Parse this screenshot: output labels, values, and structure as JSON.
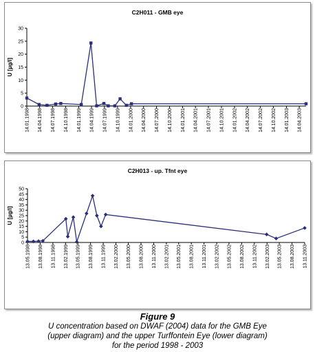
{
  "chart_data": [
    {
      "type": "line",
      "title": "C2H011 - GMB eye",
      "ylabel": "U [µg/l]",
      "xlabel": "",
      "ylim": [
        0,
        30
      ],
      "yticks": [
        0,
        5,
        10,
        15,
        20,
        25,
        30
      ],
      "xlim": [
        "1998-01-14",
        "2003-06-01"
      ],
      "xtick_labels": [
        "14.01.1998",
        "14.04.1998",
        "14.07.1998",
        "14.10.1998",
        "14.01.1999",
        "14.04.1999",
        "14.07.1999",
        "14.10.1999",
        "14.01.2000",
        "14.04.2000",
        "14.07.2000",
        "14.10.2000",
        "14.01.2001",
        "14.04.2001",
        "14.07.2001",
        "14.10.2001",
        "14.01.2002",
        "14.04.2002",
        "14.07.2002",
        "14.10.2002",
        "14.01.2003",
        "14.04.2003"
      ],
      "marker": "square",
      "color": "#2b2e7a",
      "grid": false,
      "legend": "none",
      "series": [
        {
          "x": [
            "1998-01-14",
            "1998-04-10",
            "1998-06-05",
            "1998-08-05",
            "1998-09-10",
            "1999-02-01",
            "1999-04-10",
            "1999-05-20",
            "1999-07-10",
            "1999-08-10",
            "1999-09-25",
            "1999-11-01",
            "1999-12-15",
            "2000-01-20",
            "2003-06-01"
          ],
          "y": [
            3.1,
            0.6,
            0.3,
            0.8,
            1.0,
            0.6,
            24.3,
            0.1,
            1.0,
            0.1,
            0.1,
            2.8,
            0.3,
            0.9,
            0.9
          ]
        }
      ]
    },
    {
      "type": "line",
      "title": "C2H013 - up. Tfnt eye",
      "ylabel": "U [µg/l]",
      "xlabel": "",
      "ylim": [
        0,
        50
      ],
      "yticks": [
        0,
        5,
        10,
        15,
        20,
        25,
        30,
        35,
        40,
        45,
        50
      ],
      "xlim": [
        "1998-05-13",
        "2003-11-13"
      ],
      "xtick_labels": [
        "13.05.1998",
        "13.08.1998",
        "13.11.1998",
        "13.02.1999",
        "13.05.1999",
        "13.08.1999",
        "13.11.1999",
        "13.02.2000",
        "13.05.2000",
        "13.08.2000",
        "13.11.2000",
        "13.02.2001",
        "13.05.2001",
        "13.08.2001",
        "13.11.2001",
        "13.02.2002",
        "13.05.2002",
        "13.08.2002",
        "13.11.2002",
        "13.02.2003",
        "13.05.2003",
        "13.08.2003",
        "13.11.2003"
      ],
      "marker": "diamond",
      "color": "#2b2e7a",
      "grid": false,
      "legend": "none",
      "series": [
        {
          "x": [
            "1998-05-13",
            "1998-06-25",
            "1998-08-01",
            "1998-09-01",
            "1999-02-15",
            "1999-03-01",
            "1999-04-10",
            "1999-05-05",
            "1999-07-15",
            "1999-08-28",
            "1999-09-28",
            "1999-10-28",
            "1999-12-01",
            "2003-02-10",
            "2003-04-20",
            "2003-11-13"
          ],
          "y": [
            1.0,
            1.0,
            1.2,
            1.5,
            22.0,
            5.5,
            23.5,
            0.5,
            27.0,
            43.5,
            25.0,
            15.0,
            26.0,
            7.5,
            3.7,
            13.5
          ]
        }
      ]
    }
  ],
  "figure": {
    "label": "Figure 9",
    "caption_lines": [
      "U concentration based on DWAF (2004) data for the GMB Eye",
      "(upper diagram) and the upper Turffontein Eye (lower diagram)",
      "for the period 1998 - 2003"
    ]
  }
}
